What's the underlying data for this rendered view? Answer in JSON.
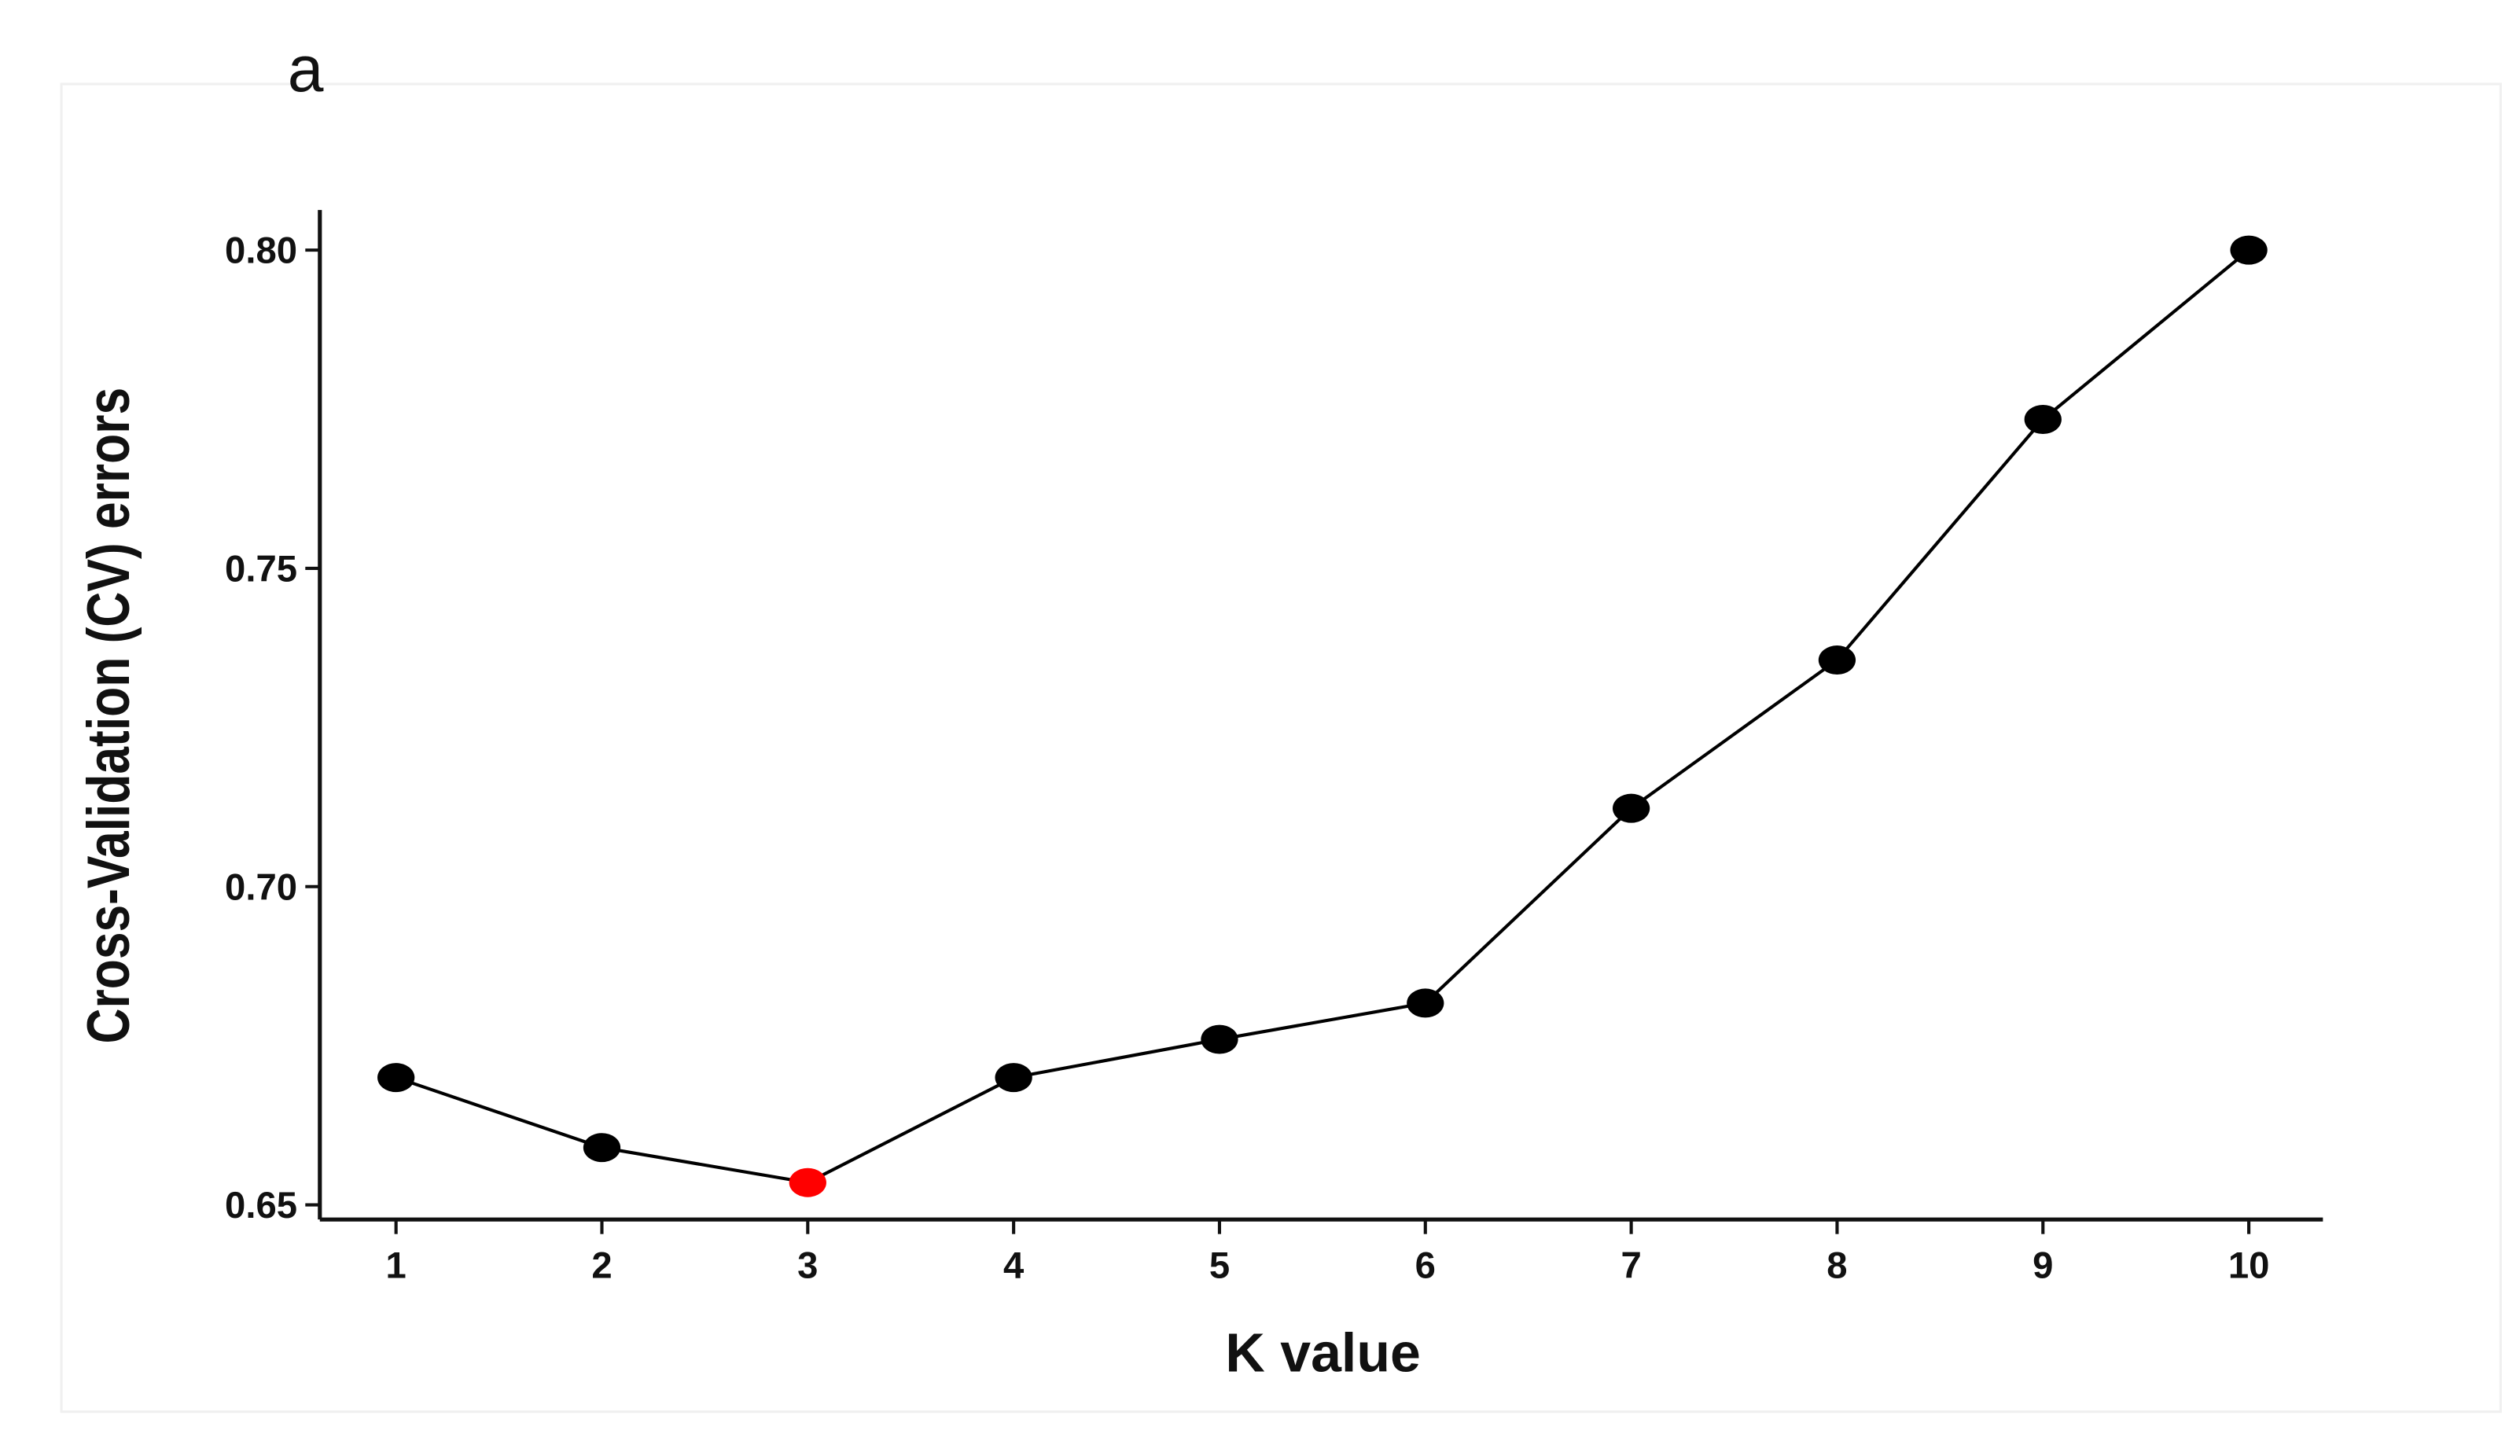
{
  "chart_data": {
    "type": "line",
    "panel_label": "a",
    "x_label": "K value",
    "y_label": "Cross-Validation (CV) errors",
    "x": [
      1,
      2,
      3,
      4,
      5,
      6,
      7,
      8,
      9,
      10
    ],
    "series": [
      {
        "color": "#000000",
        "values": [
          0.67,
          0.659,
          0.6535,
          0.67,
          0.676,
          0.6817,
          0.7123,
          0.7356,
          0.7734,
          0.8
        ],
        "marker_colors": [
          "#000000",
          "#000000",
          "#ff0000",
          "#000000",
          "#000000",
          "#000000",
          "#000000",
          "#000000",
          "#000000",
          "#000000"
        ]
      }
    ],
    "xlim": [
      0.63,
      10.36
    ],
    "ylim": [
      0.6477,
      0.8063
    ],
    "xticks": [
      1,
      2,
      3,
      4,
      5,
      6,
      7,
      8,
      9,
      10
    ],
    "yticks": [
      0.65,
      {
        "value": 0.7,
        "label": "0.70"
      },
      0.75,
      {
        "value": 0.8,
        "label": "0.80"
      }
    ],
    "grid": false
  }
}
